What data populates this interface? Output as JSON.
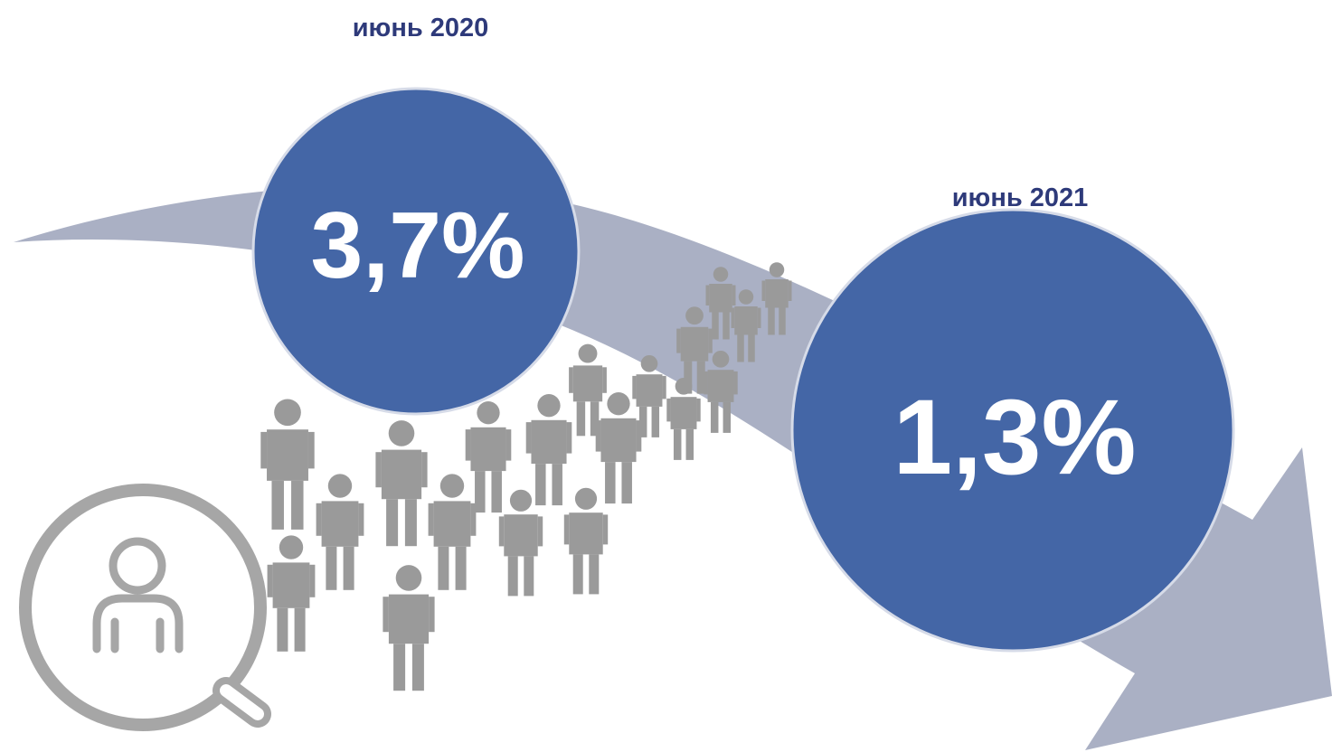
{
  "periods": [
    {
      "date": "июнь 2020",
      "value": "3,7%"
    },
    {
      "date": "июнь 2021",
      "value": "1,3%"
    }
  ]
}
